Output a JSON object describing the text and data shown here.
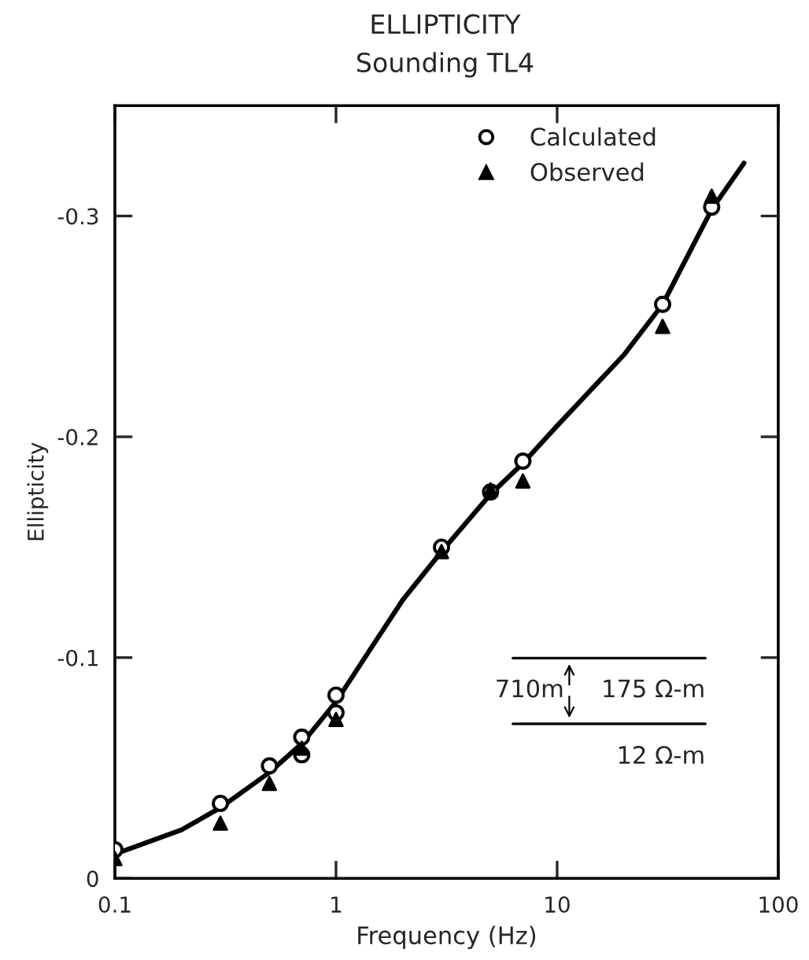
{
  "chart_data": {
    "type": "scatter",
    "title": "ELLIPTICITY",
    "subtitle": "Sounding TL4",
    "xlabel": "Frequency (Hz)",
    "ylabel": "Ellipticity",
    "log": "x",
    "xlim": [
      0.1,
      100
    ],
    "xticks": [
      0.1,
      1,
      10,
      100
    ],
    "ylim": [
      0,
      -0.35
    ],
    "yticks": [
      0,
      {
        "value": -0.1,
        "label": "-0.1"
      },
      {
        "value": -0.2,
        "label": "-0.2"
      },
      {
        "value": -0.3,
        "label": "-0.3"
      }
    ],
    "grid": false,
    "legend": "top right",
    "series": [
      {
        "type": "line",
        "color": "#000000",
        "line_style": "solid",
        "marker": "none",
        "x": [
          0.1,
          0.2,
          0.3,
          0.5,
          0.7,
          1,
          1.5,
          2,
          3,
          5,
          7,
          10,
          20,
          30,
          50,
          70
        ],
        "values": [
          -0.011,
          -0.022,
          -0.032,
          -0.048,
          -0.061,
          -0.08,
          -0.107,
          -0.126,
          -0.148,
          -0.174,
          -0.188,
          -0.205,
          -0.237,
          -0.26,
          -0.303,
          -0.324
        ]
      },
      {
        "name": "Calculated",
        "marker": "circle",
        "color": "#000000",
        "x": [
          0.1,
          0.3,
          0.5,
          0.7,
          0.7,
          1,
          1,
          3,
          5,
          7,
          30,
          50
        ],
        "values": [
          -0.013,
          -0.034,
          -0.051,
          -0.064,
          -0.056,
          -0.083,
          -0.075,
          -0.15,
          -0.175,
          -0.189,
          -0.26,
          -0.304
        ]
      },
      {
        "name": "Observed",
        "marker": "triangle",
        "color": "#000000",
        "x": [
          0.1,
          0.3,
          0.5,
          0.7,
          1,
          3,
          5,
          7,
          30,
          50
        ],
        "values": [
          -0.009,
          -0.025,
          -0.043,
          -0.059,
          -0.072,
          -0.148,
          -0.176,
          -0.18,
          -0.25,
          -0.309
        ]
      }
    ],
    "annotations": [
      "710m",
      "175 Ω-m",
      "12 Ω-m"
    ]
  }
}
